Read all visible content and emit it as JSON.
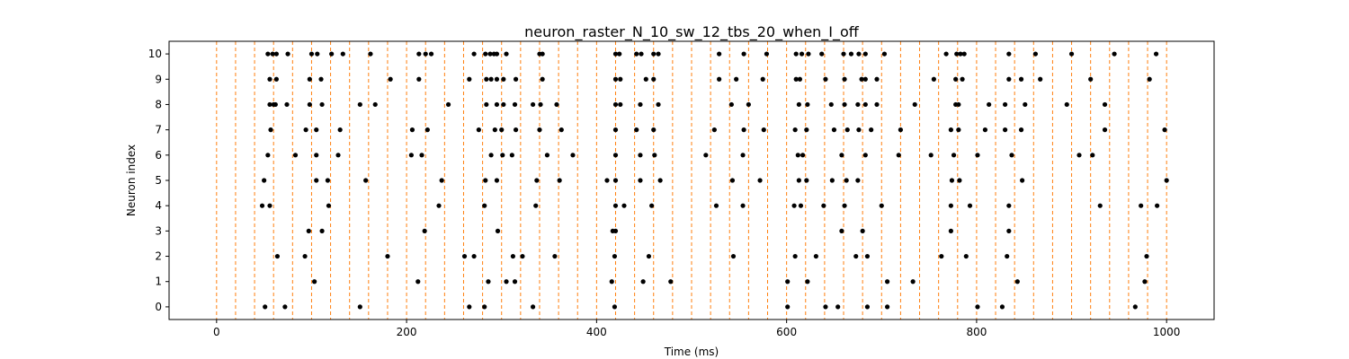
{
  "chart_data": {
    "type": "scatter",
    "title": "neuron_raster_N_10_sw_12_tbs_20_when_I_off",
    "xlabel": "Time (ms)",
    "ylabel": "Neuron index",
    "xlim": [
      -50,
      1050
    ],
    "ylim": [
      -0.5,
      10.5
    ],
    "x_ticks": [
      0,
      200,
      400,
      600,
      800,
      1000
    ],
    "y_ticks": [
      0,
      1,
      2,
      3,
      4,
      5,
      6,
      7,
      8,
      9,
      10
    ],
    "grid": false,
    "marker_color": "#000000",
    "vline_color": "#ff7f0e",
    "vlines": [
      0,
      20,
      40,
      60,
      80,
      100,
      120,
      140,
      160,
      180,
      200,
      220,
      240,
      260,
      280,
      300,
      320,
      340,
      360,
      380,
      400,
      420,
      440,
      460,
      480,
      500,
      520,
      540,
      560,
      580,
      600,
      620,
      640,
      660,
      680,
      700,
      720,
      740,
      760,
      780,
      800,
      820,
      840,
      860,
      880,
      900,
      920,
      940,
      960,
      980,
      1000
    ],
    "spikes": [
      {
        "neuron": 10,
        "times": [
          54,
          59,
          63,
          75,
          100,
          106,
          121,
          133,
          162,
          213,
          220,
          226,
          271,
          283,
          288,
          292,
          295,
          305,
          340,
          343,
          420,
          424,
          442,
          447,
          460,
          465,
          529,
          555,
          579,
          610,
          616,
          623,
          637,
          660,
          668,
          676,
          683,
          703,
          768,
          779,
          783,
          787,
          834,
          862,
          900,
          945,
          989
        ]
      },
      {
        "neuron": 9,
        "times": [
          56,
          63,
          98,
          110,
          183,
          213,
          266,
          284,
          289,
          295,
          302,
          315,
          343,
          420,
          425,
          452,
          460,
          529,
          547,
          575,
          610,
          614,
          641,
          661,
          679,
          683,
          695,
          755,
          778,
          785,
          834,
          847,
          867,
          920,
          982
        ]
      },
      {
        "neuron": 8,
        "times": [
          56,
          60,
          62,
          74,
          98,
          111,
          151,
          167,
          244,
          284,
          295,
          302,
          314,
          333,
          341,
          358,
          420,
          425,
          446,
          465,
          542,
          560,
          613,
          622,
          647,
          661,
          675,
          683,
          695,
          735,
          778,
          781,
          813,
          830,
          851,
          895,
          935
        ]
      },
      {
        "neuron": 7,
        "times": [
          57,
          94,
          105,
          130,
          206,
          222,
          276,
          293,
          300,
          315,
          340,
          363,
          420,
          442,
          460,
          524,
          555,
          576,
          609,
          621,
          650,
          664,
          676,
          689,
          720,
          773,
          781,
          809,
          830,
          847,
          935,
          998
        ]
      },
      {
        "neuron": 6,
        "times": [
          54,
          83,
          105,
          128,
          205,
          216,
          289,
          301,
          311,
          348,
          375,
          420,
          446,
          461,
          515,
          554,
          612,
          617,
          658,
          683,
          718,
          752,
          776,
          801,
          837,
          908,
          922
        ]
      },
      {
        "neuron": 5,
        "times": [
          50,
          105,
          117,
          157,
          237,
          283,
          295,
          337,
          361,
          411,
          420,
          446,
          467,
          543,
          572,
          613,
          621,
          648,
          663,
          675,
          774,
          782,
          848,
          1000
        ]
      },
      {
        "neuron": 4,
        "times": [
          48,
          56,
          118,
          234,
          282,
          336,
          420,
          429,
          458,
          526,
          554,
          608,
          615,
          639,
          661,
          700,
          773,
          793,
          834,
          930,
          973,
          990
        ]
      },
      {
        "neuron": 3,
        "times": [
          97,
          111,
          219,
          296,
          417,
          420,
          658,
          680,
          773,
          834
        ]
      },
      {
        "neuron": 2,
        "times": [
          64,
          93,
          180,
          261,
          271,
          312,
          322,
          356,
          419,
          455,
          544,
          609,
          631,
          673,
          685,
          763,
          789,
          832,
          979
        ]
      },
      {
        "neuron": 1,
        "times": [
          103,
          212,
          286,
          305,
          314,
          416,
          449,
          478,
          601,
          622,
          706,
          733,
          843,
          977
        ]
      },
      {
        "neuron": 0,
        "times": [
          51,
          72,
          151,
          266,
          282,
          333,
          419,
          601,
          641,
          654,
          685,
          706,
          801,
          827,
          967
        ]
      }
    ]
  }
}
